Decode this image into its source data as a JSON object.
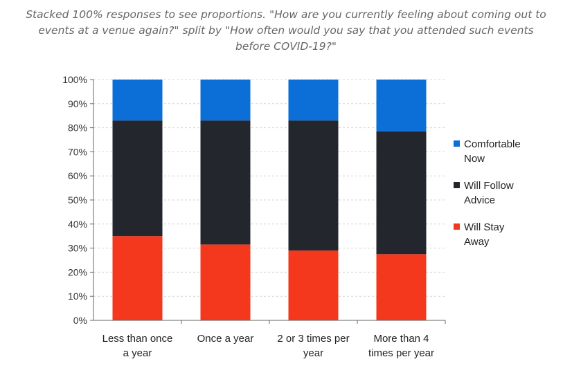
{
  "caption": "Stacked 100% responses to see proportions. \"How are you currently feeling about coming out to events at a venue again?\" split by \"How often would you say that you attended such events before COVID-19?\"",
  "chart_data": {
    "type": "bar",
    "stacked": true,
    "title": "",
    "xlabel": "",
    "ylabel": "",
    "ylim": [
      0,
      100
    ],
    "y_ticks": [
      "0%",
      "10%",
      "20%",
      "30%",
      "40%",
      "50%",
      "60%",
      "70%",
      "80%",
      "90%",
      "100%"
    ],
    "grid": "horizontal dashed",
    "legend_position": "right",
    "categories": [
      [
        "Less than once",
        "a year"
      ],
      [
        "Once a year"
      ],
      [
        "2 or 3 times per",
        "year"
      ],
      [
        "More than 4",
        "times per year"
      ]
    ],
    "series": [
      {
        "name": [
          "Will Stay",
          "Away"
        ],
        "color": "#f4381e",
        "values": [
          35,
          31.5,
          29,
          27.5
        ]
      },
      {
        "name": [
          "Will Follow",
          "Advice"
        ],
        "color": "#23272d",
        "values": [
          48,
          51.5,
          54,
          51
        ]
      },
      {
        "name": [
          "Comfortable",
          "Now"
        ],
        "color": "#0c6fd8",
        "values": [
          17,
          17,
          17,
          21.5
        ]
      }
    ]
  }
}
